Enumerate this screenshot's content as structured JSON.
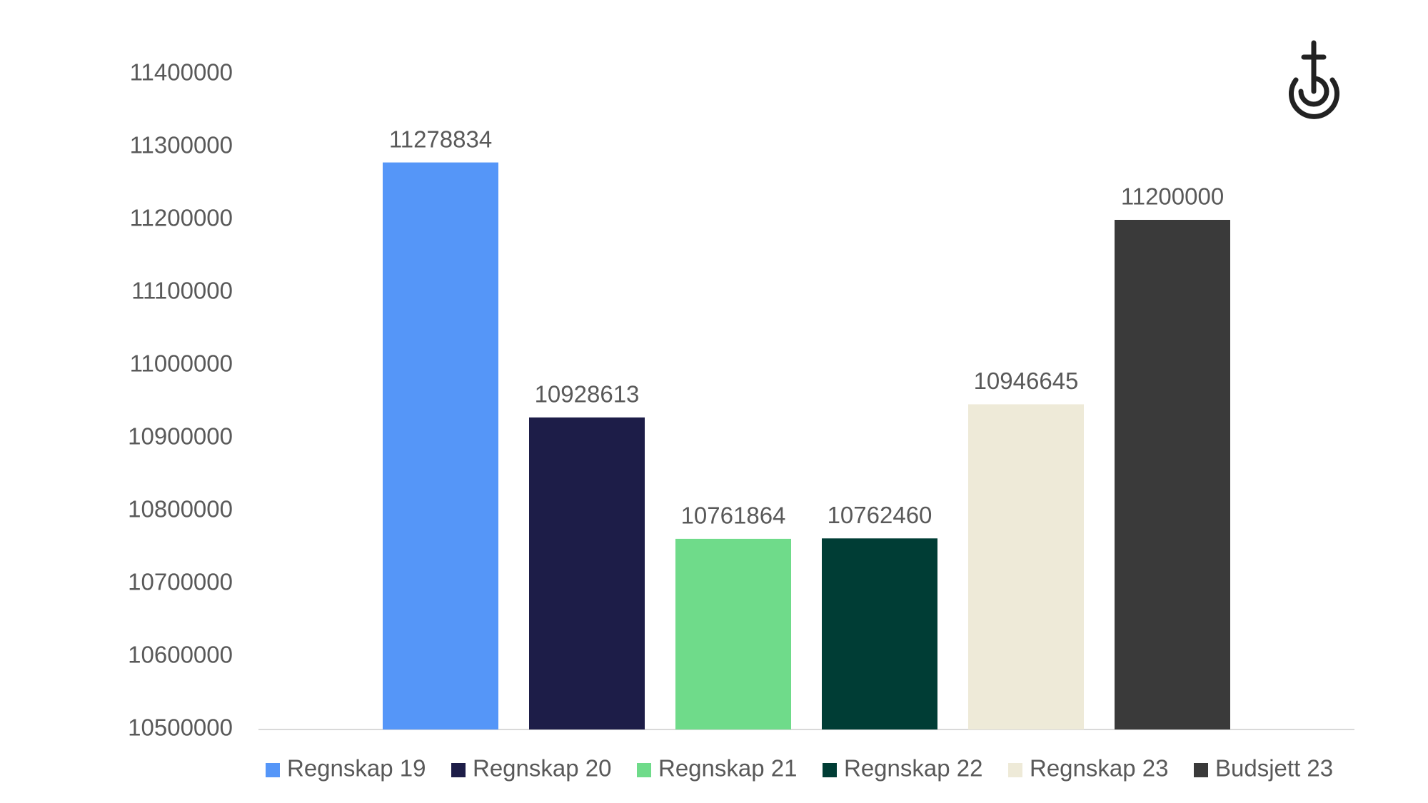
{
  "chart_data": {
    "type": "bar",
    "series": [
      {
        "name": "Regnskap 19",
        "color": "#5596f8",
        "values": [
          11278834
        ]
      },
      {
        "name": "Regnskap 20",
        "color": "#1d1d48",
        "values": [
          10928613
        ]
      },
      {
        "name": "Regnskap 21",
        "color": "#6fdb8a",
        "values": [
          10761864
        ]
      },
      {
        "name": "Regnskap 22",
        "color": "#003d35",
        "values": [
          10762460
        ]
      },
      {
        "name": "Regnskap 23",
        "color": "#eeead8",
        "values": [
          10946645
        ]
      },
      {
        "name": "Budsjett 23",
        "color": "#3a3a3a",
        "values": [
          11200000
        ]
      }
    ],
    "ylim": [
      10500000,
      11400000
    ],
    "yticks": [
      10500000,
      10600000,
      10700000,
      10800000,
      10900000,
      11000000,
      11100000,
      11200000,
      11300000,
      11400000
    ],
    "grid": false,
    "legend": "bottom"
  }
}
